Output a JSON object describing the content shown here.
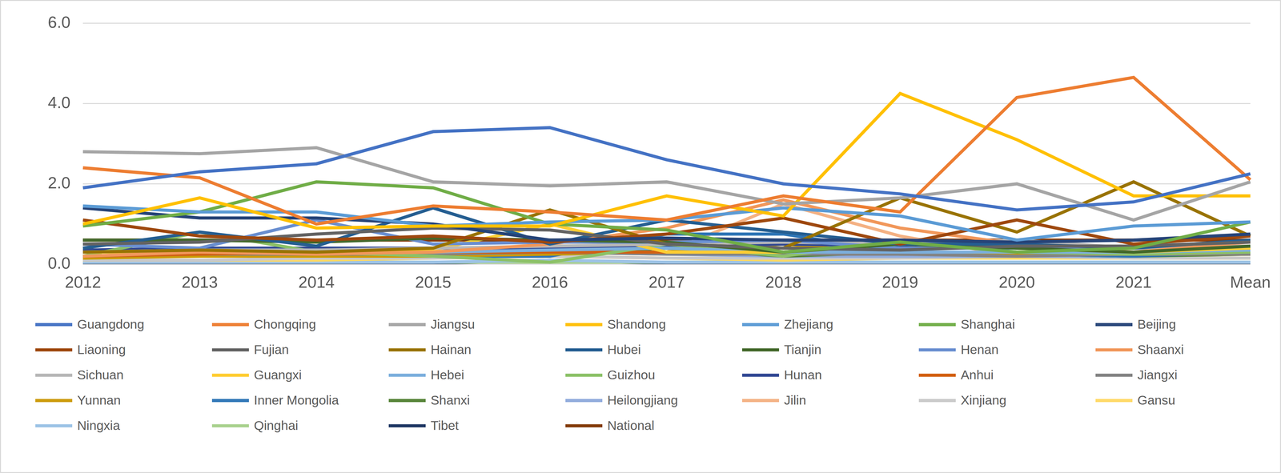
{
  "chart_data": {
    "type": "line",
    "categories": [
      "2012",
      "2013",
      "2014",
      "2015",
      "2016",
      "2017",
      "2018",
      "2019",
      "2020",
      "2021",
      "Mean"
    ],
    "ylim": [
      0,
      6
    ],
    "yticks": [
      {
        "value": 0,
        "label": "0.0"
      },
      {
        "value": 2,
        "label": "2.0"
      },
      {
        "value": 4,
        "label": "4.0"
      },
      {
        "value": 6,
        "label": "6.0"
      }
    ],
    "grid": true,
    "legend": "bottom",
    "series": [
      {
        "name": "Guangdong",
        "color": "#4472C4",
        "values": [
          1.9,
          2.3,
          2.5,
          3.3,
          3.4,
          2.6,
          2.0,
          1.75,
          1.35,
          1.55,
          2.25
        ]
      },
      {
        "name": "Chongqing",
        "color": "#ED7D31",
        "values": [
          2.4,
          2.15,
          1.0,
          1.45,
          1.3,
          1.1,
          1.7,
          1.3,
          4.15,
          4.65,
          2.1
        ]
      },
      {
        "name": "Jiangsu",
        "color": "#A5A5A5",
        "values": [
          2.8,
          2.75,
          2.9,
          2.05,
          1.95,
          2.05,
          1.5,
          1.65,
          2.0,
          1.1,
          2.05
        ]
      },
      {
        "name": "Shandong",
        "color": "#FFC000",
        "values": [
          1.0,
          1.65,
          0.9,
          0.95,
          0.95,
          1.7,
          1.2,
          4.25,
          3.1,
          1.7,
          1.7
        ]
      },
      {
        "name": "Zhejiang",
        "color": "#5B9BD5",
        "values": [
          1.45,
          1.3,
          1.3,
          0.95,
          1.05,
          1.1,
          1.4,
          1.2,
          0.6,
          0.95,
          1.05
        ]
      },
      {
        "name": "Shanghai",
        "color": "#70AD47",
        "values": [
          0.95,
          1.3,
          2.05,
          1.9,
          1.0,
          0.85,
          0.3,
          0.55,
          0.3,
          0.4,
          1.05
        ]
      },
      {
        "name": "Beijing",
        "color": "#264478",
        "values": [
          1.4,
          1.15,
          1.15,
          1.0,
          0.6,
          0.65,
          0.6,
          0.6,
          0.55,
          0.6,
          0.75
        ]
      },
      {
        "name": "Liaoning",
        "color": "#9E480E",
        "values": [
          1.1,
          0.7,
          0.6,
          0.7,
          0.55,
          0.75,
          1.15,
          0.5,
          1.1,
          0.5,
          0.7
        ]
      },
      {
        "name": "Fujian",
        "color": "#636363",
        "values": [
          0.5,
          0.55,
          0.75,
          0.9,
          0.85,
          0.5,
          0.4,
          0.35,
          0.45,
          0.45,
          0.55
        ]
      },
      {
        "name": "Hainan",
        "color": "#997300",
        "values": [
          0.3,
          0.35,
          0.3,
          0.4,
          1.35,
          0.5,
          0.4,
          1.65,
          0.8,
          2.05,
          0.7
        ]
      },
      {
        "name": "Hubei",
        "color": "#255E91",
        "values": [
          0.4,
          0.8,
          0.45,
          1.4,
          0.5,
          1.1,
          0.8,
          0.5,
          0.5,
          0.4,
          0.6
        ]
      },
      {
        "name": "Tianjin",
        "color": "#43682B",
        "values": [
          0.6,
          0.6,
          0.55,
          0.65,
          0.6,
          0.55,
          0.3,
          0.5,
          0.4,
          0.3,
          0.45
        ]
      },
      {
        "name": "Henan",
        "color": "#698ED0",
        "values": [
          0.5,
          0.4,
          1.1,
          0.5,
          0.55,
          0.55,
          0.6,
          0.4,
          0.4,
          0.45,
          0.55
        ]
      },
      {
        "name": "Shaanxi",
        "color": "#F1975A",
        "values": [
          0.2,
          0.3,
          0.25,
          0.3,
          0.5,
          0.9,
          1.6,
          0.9,
          0.5,
          0.3,
          0.55
        ]
      },
      {
        "name": "Sichuan",
        "color": "#B7B7B7",
        "values": [
          0.3,
          0.35,
          0.35,
          0.4,
          0.45,
          0.5,
          0.55,
          0.5,
          0.6,
          0.4,
          0.45
        ]
      },
      {
        "name": "Guangxi",
        "color": "#FFCD33",
        "values": [
          0.3,
          0.3,
          0.3,
          0.35,
          1.0,
          0.3,
          0.3,
          0.5,
          0.4,
          0.3,
          0.4
        ]
      },
      {
        "name": "Hebei",
        "color": "#7CAFDD",
        "values": [
          0.3,
          0.35,
          0.35,
          0.3,
          0.35,
          0.4,
          0.3,
          0.3,
          0.3,
          0.3,
          0.35
        ]
      },
      {
        "name": "Guizhou",
        "color": "#8CC168",
        "values": [
          0.2,
          0.8,
          0.3,
          0.2,
          0.05,
          0.5,
          0.2,
          0.6,
          0.3,
          0.25,
          0.3
        ]
      },
      {
        "name": "Hunan",
        "color": "#334A94",
        "values": [
          0.35,
          0.4,
          0.4,
          0.4,
          0.4,
          0.45,
          0.5,
          0.45,
          0.4,
          0.4,
          0.4
        ]
      },
      {
        "name": "Anhui",
        "color": "#D26012",
        "values": [
          0.2,
          0.25,
          0.3,
          0.3,
          0.3,
          0.3,
          0.3,
          0.3,
          0.3,
          0.3,
          0.3
        ]
      },
      {
        "name": "Jiangxi",
        "color": "#848484",
        "values": [
          0.2,
          0.25,
          0.25,
          0.25,
          0.3,
          0.25,
          0.25,
          0.25,
          0.2,
          0.25,
          0.25
        ]
      },
      {
        "name": "Yunnan",
        "color": "#CC9A00",
        "values": [
          0.15,
          0.2,
          0.2,
          0.2,
          0.25,
          0.3,
          0.5,
          0.25,
          0.25,
          0.25,
          0.25
        ]
      },
      {
        "name": "Inner Mongolia",
        "color": "#2E75B6",
        "values": [
          0.3,
          0.3,
          0.25,
          0.2,
          0.2,
          0.75,
          0.75,
          0.3,
          0.25,
          0.2,
          0.3
        ]
      },
      {
        "name": "Shanxi",
        "color": "#548235",
        "values": [
          0.2,
          0.2,
          0.2,
          0.2,
          0.25,
          0.4,
          0.2,
          0.3,
          0.25,
          0.2,
          0.25
        ]
      },
      {
        "name": "Heilongjiang",
        "color": "#8FAADC",
        "values": [
          0.3,
          0.3,
          0.3,
          0.3,
          0.3,
          0.25,
          0.2,
          0.2,
          0.2,
          0.2,
          0.25
        ]
      },
      {
        "name": "Jilin",
        "color": "#F4B183",
        "values": [
          0.2,
          0.2,
          0.2,
          0.25,
          0.25,
          0.3,
          1.5,
          0.7,
          0.2,
          0.2,
          0.4
        ]
      },
      {
        "name": "Xinjiang",
        "color": "#C9C9C9",
        "values": [
          0.1,
          0.1,
          0.15,
          0.15,
          0.2,
          0.15,
          0.15,
          0.15,
          0.2,
          0.15,
          0.15
        ]
      },
      {
        "name": "Gansu",
        "color": "#FFD966",
        "values": [
          0.1,
          0.1,
          0.1,
          0.15,
          0.2,
          0.15,
          0.1,
          0.15,
          0.15,
          0.15,
          0.15
        ]
      },
      {
        "name": "Ningxia",
        "color": "#9DC3E6",
        "values": [
          0.05,
          0.05,
          0.05,
          0.05,
          0.1,
          0.05,
          0.05,
          0.05,
          0.05,
          0.05,
          0.05
        ]
      },
      {
        "name": "Qinghai",
        "color": "#A9D18E",
        "values": [
          0.05,
          0.05,
          0.05,
          0.05,
          0.05,
          0.05,
          0.05,
          0.05,
          0.05,
          0.05,
          0.05
        ]
      },
      {
        "name": "Tibet",
        "color": "#203864",
        "values": [
          0.02,
          0.02,
          0.02,
          0.02,
          0.1,
          0.02,
          0.02,
          0.02,
          0.02,
          0.02,
          0.02
        ]
      },
      {
        "name": "National",
        "color": "#843C0C",
        "values": [
          0.6,
          0.6,
          0.6,
          0.6,
          0.6,
          0.6,
          0.6,
          0.6,
          0.6,
          0.6,
          0.6
        ]
      }
    ]
  }
}
